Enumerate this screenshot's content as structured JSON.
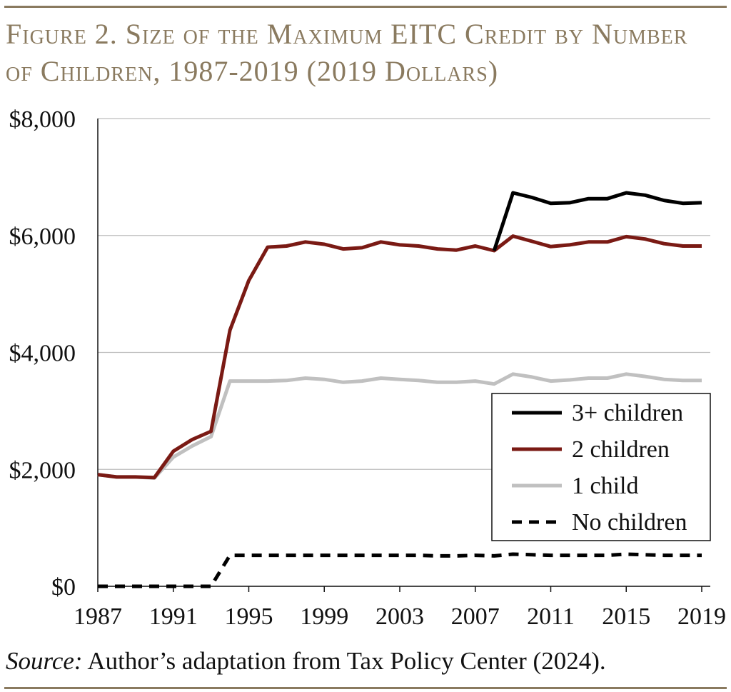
{
  "figure": {
    "title": "Figure 2. Size of the Maximum EITC Credit by Number of Children, 1987-2019 (2019 Dollars)",
    "source_label": "Source:",
    "source_text": " Author’s adaptation from Tax Policy Center (2024)."
  },
  "colors": {
    "three_plus": "#000000",
    "two": "#7a1a14",
    "one": "#c0c0c0",
    "none": "#000000",
    "grid": "#bdbdbd",
    "accent": "#8a7a5f"
  },
  "chart_data": {
    "type": "line",
    "title": "Size of the Maximum EITC Credit by Number of Children, 1987-2019 (2019 Dollars)",
    "xlabel": "",
    "ylabel": "",
    "ylim": [
      0,
      8000
    ],
    "xlim": [
      1987,
      2019
    ],
    "y_ticks": [
      0,
      2000,
      4000,
      6000,
      8000
    ],
    "y_tick_labels": [
      "$0",
      "$2,000",
      "$4,000",
      "$6,000",
      "$8,000"
    ],
    "x_ticks": [
      1987,
      1991,
      1995,
      1999,
      2003,
      2007,
      2011,
      2015,
      2019
    ],
    "x_tick_labels": [
      "1987",
      "1991",
      "1995",
      "1999",
      "2003",
      "2007",
      "2011",
      "2015",
      "2019"
    ],
    "grid": true,
    "legend_position": "bottom-right",
    "x": [
      1987,
      1988,
      1989,
      1990,
      1991,
      1992,
      1993,
      1994,
      1995,
      1996,
      1997,
      1998,
      1999,
      2000,
      2001,
      2002,
      2003,
      2004,
      2005,
      2006,
      2007,
      2008,
      2009,
      2010,
      2011,
      2012,
      2013,
      2014,
      2015,
      2016,
      2017,
      2018,
      2019
    ],
    "series": [
      {
        "name": "3+ children",
        "key": "three_plus",
        "style": "solid",
        "x": [
          2008,
          2009,
          2010,
          2011,
          2012,
          2013,
          2014,
          2015,
          2016,
          2017,
          2018,
          2019
        ],
        "values": [
          5740,
          6730,
          6650,
          6550,
          6560,
          6630,
          6630,
          6730,
          6690,
          6600,
          6550,
          6560
        ]
      },
      {
        "name": "2 children",
        "key": "two",
        "style": "solid",
        "x": [
          1987,
          1988,
          1989,
          1990,
          1991,
          1992,
          1993,
          1994,
          1995,
          1996,
          1997,
          1998,
          1999,
          2000,
          2001,
          2002,
          2003,
          2004,
          2005,
          2006,
          2007,
          2008,
          2009,
          2010,
          2011,
          2012,
          2013,
          2014,
          2015,
          2016,
          2017,
          2018,
          2019
        ],
        "values": [
          1910,
          1870,
          1870,
          1860,
          2310,
          2510,
          2650,
          4380,
          5230,
          5800,
          5820,
          5890,
          5850,
          5770,
          5790,
          5890,
          5840,
          5820,
          5770,
          5750,
          5820,
          5740,
          5990,
          5900,
          5810,
          5840,
          5890,
          5890,
          5980,
          5940,
          5860,
          5820,
          5820
        ]
      },
      {
        "name": "1 child",
        "key": "one",
        "style": "solid",
        "x": [
          1987,
          1988,
          1989,
          1990,
          1991,
          1992,
          1993,
          1994,
          1995,
          1996,
          1997,
          1998,
          1999,
          2000,
          2001,
          2002,
          2003,
          2004,
          2005,
          2006,
          2007,
          2008,
          2009,
          2010,
          2011,
          2012,
          2013,
          2014,
          2015,
          2016,
          2017,
          2018,
          2019
        ],
        "values": [
          1910,
          1870,
          1870,
          1850,
          2210,
          2400,
          2560,
          3510,
          3510,
          3510,
          3520,
          3560,
          3540,
          3490,
          3510,
          3560,
          3540,
          3520,
          3490,
          3490,
          3510,
          3460,
          3630,
          3580,
          3510,
          3530,
          3560,
          3560,
          3630,
          3590,
          3540,
          3520,
          3520
        ]
      },
      {
        "name": "No children",
        "key": "none",
        "style": "dashed",
        "x": [
          1987,
          1988,
          1989,
          1990,
          1991,
          1992,
          1993,
          1994,
          1995,
          1996,
          1997,
          1998,
          1999,
          2000,
          2001,
          2002,
          2003,
          2004,
          2005,
          2006,
          2007,
          2008,
          2009,
          2010,
          2011,
          2012,
          2013,
          2014,
          2015,
          2016,
          2017,
          2018,
          2019
        ],
        "values": [
          0,
          0,
          0,
          0,
          0,
          0,
          0,
          530,
          530,
          530,
          530,
          530,
          530,
          530,
          530,
          530,
          530,
          530,
          520,
          520,
          530,
          520,
          550,
          540,
          530,
          530,
          530,
          530,
          550,
          540,
          530,
          530,
          530
        ]
      }
    ],
    "legend": [
      "3+ children",
      "2 children",
      "1 child",
      "No children"
    ]
  }
}
